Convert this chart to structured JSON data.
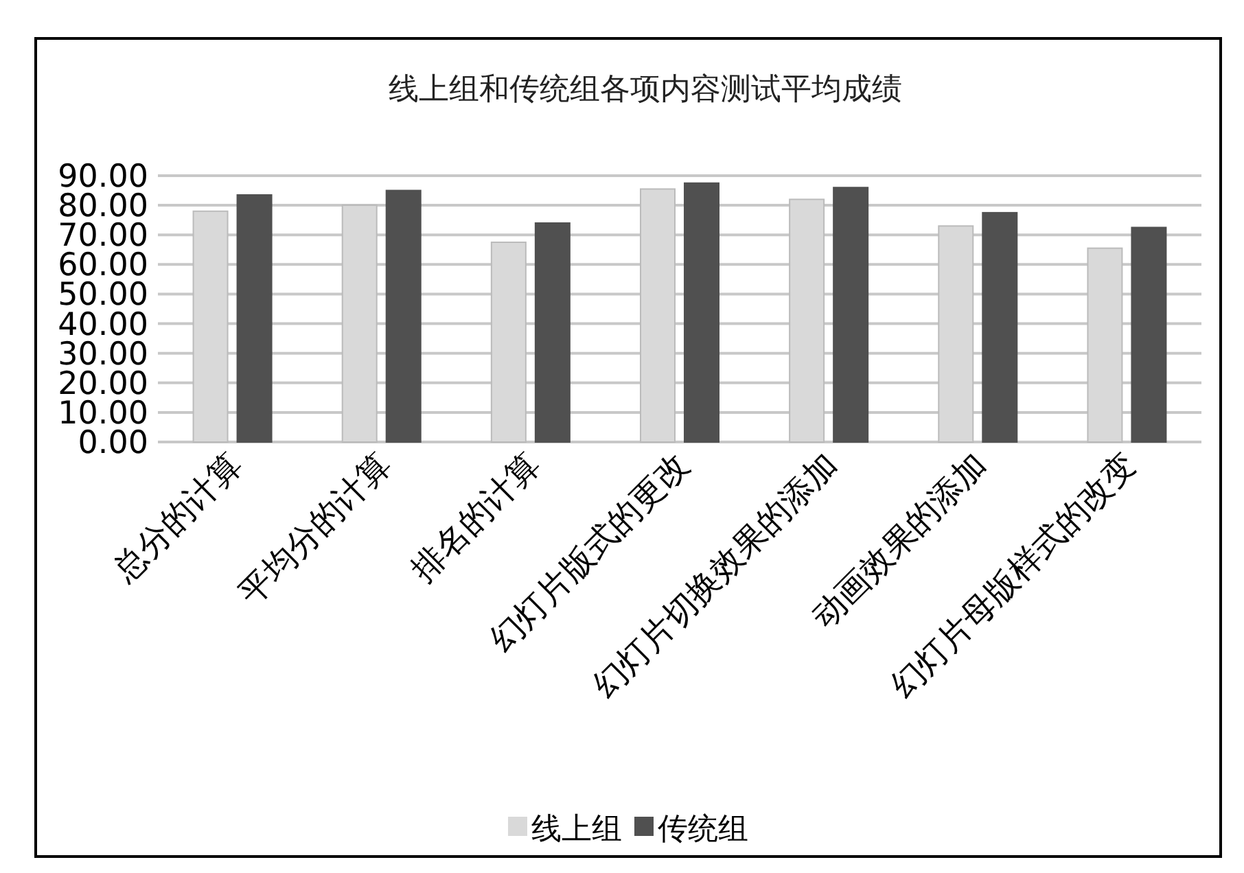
{
  "chart_data": {
    "type": "bar",
    "title": "线上组和传统组各项内容测试平均成绩",
    "categories": [
      "总分的计算",
      "平均分的计算",
      "排名的计算",
      "幻灯片版式的更改",
      "幻灯片切换效果的添加",
      "动画效果的添加",
      "幻灯片母版样式的改变"
    ],
    "series": [
      {
        "name": "线上组",
        "color": "#d9d9d9",
        "values": [
          78,
          80,
          67.5,
          85.5,
          82,
          73,
          65.5
        ]
      },
      {
        "name": "传统组",
        "color": "#505050",
        "values": [
          83.5,
          85,
          74,
          87.5,
          86,
          77.5,
          72.5
        ]
      }
    ],
    "ylim": [
      0,
      90
    ],
    "yticks": [
      {
        "value": 0,
        "label": "0.00"
      },
      {
        "value": 10,
        "label": "10.00"
      },
      {
        "value": 20,
        "label": "20.00"
      },
      {
        "value": 30,
        "label": "30.00"
      },
      {
        "value": 40,
        "label": "40.00"
      },
      {
        "value": 50,
        "label": "50.00"
      },
      {
        "value": 60,
        "label": "60.00"
      },
      {
        "value": 70,
        "label": "70.00"
      },
      {
        "value": 80,
        "label": "80.00"
      },
      {
        "value": 90,
        "label": "90.00"
      }
    ],
    "grid": "y",
    "legend": "bottom"
  }
}
